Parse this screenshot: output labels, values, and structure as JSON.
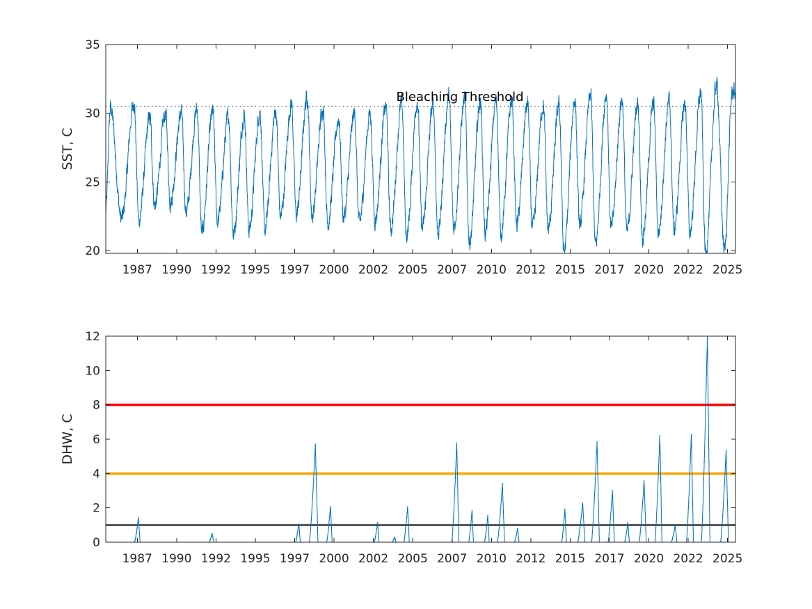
{
  "colors": {
    "series": "#0072BD",
    "axis": "#262626",
    "threshold_high": "#FF0000",
    "threshold_mid": "#FFA500",
    "threshold_low": "#000000"
  },
  "chart_data": [
    {
      "type": "line",
      "title": "",
      "xlabel": "",
      "ylabel": "SST, C",
      "xlim": [
        1985.0,
        2025.0
      ],
      "ylim": [
        19.8,
        35.0
      ],
      "x_ticks": [
        "1987",
        "1990",
        "1992",
        "1995",
        "1997",
        "2000",
        "2002",
        "2005",
        "2007",
        "2010",
        "2012",
        "2015",
        "2017",
        "2020",
        "2022",
        "2025"
      ],
      "x_tick_values": [
        1987.0,
        1989.5,
        1992.0,
        1994.5,
        1997.0,
        1999.5,
        2002.0,
        2004.5,
        2007.0,
        2009.5,
        2012.0,
        2014.5,
        2017.0,
        2019.5,
        2022.0,
        2024.5
      ],
      "y_ticks": [
        20,
        25,
        30,
        35
      ],
      "grid": false,
      "series": [
        {
          "description_of_values": "daily SST, approximated by annual max/min extremes",
          "annual_peaks": [
            [
              1985.3,
              30.4
            ],
            [
              1986.8,
              30.8
            ],
            [
              1987.8,
              29.7
            ],
            [
              1988.8,
              30.0
            ],
            [
              1989.8,
              30.0
            ],
            [
              1990.8,
              30.3
            ],
            [
              1991.8,
              30.1
            ],
            [
              1992.8,
              29.8
            ],
            [
              1993.8,
              29.9
            ],
            [
              1994.8,
              30.1
            ],
            [
              1995.8,
              30.1
            ],
            [
              1996.8,
              30.7
            ],
            [
              1997.8,
              31.2
            ],
            [
              1998.8,
              30.4
            ],
            [
              1999.8,
              29.6
            ],
            [
              2000.8,
              30.0
            ],
            [
              2001.8,
              30.0
            ],
            [
              2002.8,
              30.5
            ],
            [
              2003.8,
              30.7
            ],
            [
              2004.8,
              30.9
            ],
            [
              2005.8,
              30.6
            ],
            [
              2006.8,
              31.2
            ],
            [
              2007.8,
              31.0
            ],
            [
              2008.8,
              30.9
            ],
            [
              2009.8,
              30.9
            ],
            [
              2010.8,
              31.0
            ],
            [
              2011.8,
              30.7
            ],
            [
              2012.8,
              30.6
            ],
            [
              2013.8,
              30.6
            ],
            [
              2014.8,
              31.0
            ],
            [
              2015.8,
              31.3
            ],
            [
              2016.8,
              31.4
            ],
            [
              2017.8,
              31.0
            ],
            [
              2018.8,
              30.7
            ],
            [
              2019.8,
              30.7
            ],
            [
              2020.8,
              30.9
            ],
            [
              2021.8,
              30.7
            ],
            [
              2022.8,
              31.5
            ],
            [
              2023.8,
              32.1
            ],
            [
              2024.8,
              31.5
            ]
          ],
          "annual_troughs": [
            [
              1985.0,
              23.0
            ],
            [
              1986.0,
              22.3
            ],
            [
              1987.1,
              22.2
            ],
            [
              1988.1,
              23.3
            ],
            [
              1989.1,
              23.5
            ],
            [
              1990.1,
              22.8
            ],
            [
              1991.1,
              21.3
            ],
            [
              1992.1,
              22.1
            ],
            [
              1993.1,
              21.2
            ],
            [
              1994.1,
              21.5
            ],
            [
              1995.1,
              21.5
            ],
            [
              1996.1,
              22.5
            ],
            [
              1997.1,
              22.6
            ],
            [
              1998.1,
              22.5
            ],
            [
              1999.1,
              22.0
            ],
            [
              2000.1,
              22.4
            ],
            [
              2001.1,
              22.0
            ],
            [
              2002.1,
              22.2
            ],
            [
              2003.1,
              21.6
            ],
            [
              2004.1,
              21.1
            ],
            [
              2005.1,
              21.6
            ],
            [
              2006.1,
              21.3
            ],
            [
              2007.1,
              21.7
            ],
            [
              2008.1,
              20.6
            ],
            [
              2009.1,
              21.3
            ],
            [
              2010.1,
              21.3
            ],
            [
              2011.1,
              21.9
            ],
            [
              2012.1,
              21.6
            ],
            [
              2013.1,
              21.5
            ],
            [
              2014.1,
              19.9
            ],
            [
              2015.1,
              21.8
            ],
            [
              2016.1,
              20.4
            ],
            [
              2017.1,
              21.6
            ],
            [
              2018.1,
              21.3
            ],
            [
              2019.1,
              21.0
            ],
            [
              2020.1,
              21.3
            ],
            [
              2021.1,
              21.5
            ],
            [
              2022.1,
              21.3
            ],
            [
              2023.1,
              19.8
            ],
            [
              2024.3,
              20.0
            ]
          ]
        }
      ],
      "annotations": [
        {
          "text": "Bleaching Threshold",
          "x": 2007.5,
          "y": 31.0,
          "line_y": 30.5,
          "line_style": "dotted"
        }
      ]
    },
    {
      "type": "line",
      "title": "",
      "xlabel": "",
      "ylabel": "DHW, C",
      "xlim": [
        1985.0,
        2025.0
      ],
      "ylim": [
        0,
        12
      ],
      "x_ticks": [
        "1987",
        "1990",
        "1992",
        "1995",
        "1997",
        "2000",
        "2002",
        "2005",
        "2007",
        "2010",
        "2012",
        "2015",
        "2017",
        "2020",
        "2022",
        "2025"
      ],
      "x_tick_values": [
        1987.0,
        1989.5,
        1992.0,
        1994.5,
        1997.0,
        1999.5,
        2002.0,
        2004.5,
        2007.0,
        2009.5,
        2012.0,
        2014.5,
        2017.0,
        2019.5,
        2022.0,
        2024.5
      ],
      "y_ticks": [
        0,
        2,
        4,
        6,
        8,
        10,
        12
      ],
      "grid": false,
      "reference_lines": [
        {
          "y": 8,
          "color": "red"
        },
        {
          "y": 4,
          "color": "orange"
        },
        {
          "y": 1,
          "color": "black"
        }
      ],
      "series": [
        {
          "events": [
            {
              "center": 1987.0,
              "peak": 1.4,
              "width": 0.35
            },
            {
              "center": 1991.7,
              "peak": 0.5,
              "width": 0.3
            },
            {
              "center": 1997.2,
              "peak": 1.1,
              "width": 0.3
            },
            {
              "center": 1998.2,
              "peak": 5.7,
              "width": 0.55
            },
            {
              "center": 1999.2,
              "peak": 2.1,
              "width": 0.35
            },
            {
              "center": 2002.2,
              "peak": 1.15,
              "width": 0.3
            },
            {
              "center": 2003.3,
              "peak": 0.3,
              "width": 0.25
            },
            {
              "center": 2004.1,
              "peak": 2.05,
              "width": 0.35
            },
            {
              "center": 2007.2,
              "peak": 5.8,
              "width": 0.45
            },
            {
              "center": 2008.2,
              "peak": 1.85,
              "width": 0.3
            },
            {
              "center": 2009.2,
              "peak": 1.55,
              "width": 0.3
            },
            {
              "center": 2010.1,
              "peak": 3.4,
              "width": 0.45
            },
            {
              "center": 2011.1,
              "peak": 0.8,
              "width": 0.3
            },
            {
              "center": 2014.1,
              "peak": 1.9,
              "width": 0.3
            },
            {
              "center": 2015.2,
              "peak": 2.3,
              "width": 0.45
            },
            {
              "center": 2016.1,
              "peak": 5.85,
              "width": 0.5
            },
            {
              "center": 2017.1,
              "peak": 3.0,
              "width": 0.4
            },
            {
              "center": 2018.1,
              "peak": 1.15,
              "width": 0.3
            },
            {
              "center": 2019.1,
              "peak": 3.6,
              "width": 0.45
            },
            {
              "center": 2020.1,
              "peak": 6.25,
              "width": 0.45
            },
            {
              "center": 2021.1,
              "peak": 1.0,
              "width": 0.35
            },
            {
              "center": 2022.1,
              "peak": 6.3,
              "width": 0.45
            },
            {
              "center": 2023.1,
              "peak": 12.0,
              "width": 0.55
            },
            {
              "center": 2024.3,
              "peak": 5.35,
              "width": 0.5
            }
          ]
        }
      ]
    }
  ]
}
